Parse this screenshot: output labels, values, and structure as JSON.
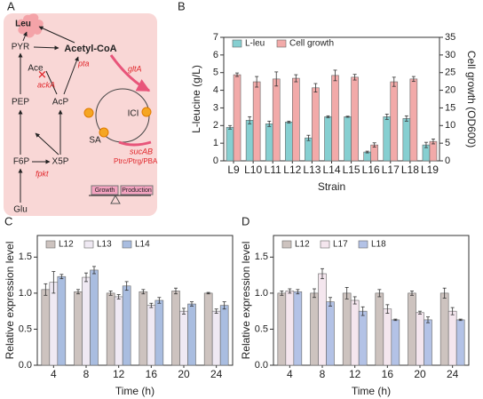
{
  "panels": [
    "A",
    "B",
    "C",
    "D"
  ],
  "diagram": {
    "nodes": [
      "Leu",
      "PYR",
      "Acetyl-CoA",
      "Ace",
      "PEP",
      "AcP",
      "F6P",
      "X5P",
      "Glu",
      "ICI",
      "SA",
      "Growth",
      "Production"
    ],
    "genes": [
      "pta",
      "ackA",
      "gltA",
      "fpkt",
      "sucAB",
      "Ptrc/Ptrg/PBA"
    ]
  },
  "chart_data": [
    {
      "type": "bar",
      "xlabel": "Strain",
      "ylabel": "L-leucine (g/L)",
      "y2label": "Cell growth (OD600)",
      "categories": [
        "L9",
        "L10",
        "L11",
        "L12",
        "L13",
        "L14",
        "L15",
        "L16",
        "L17",
        "L18",
        "L19"
      ],
      "series": [
        {
          "name": "L-leu",
          "color": "#86cfd1",
          "values": [
            1.9,
            2.3,
            2.1,
            2.2,
            1.3,
            2.5,
            2.5,
            0.5,
            2.5,
            2.4,
            0.9
          ],
          "errors": [
            0.1,
            0.2,
            0.15,
            0.05,
            0.15,
            0.05,
            0.03,
            0.05,
            0.15,
            0.15,
            0.15
          ]
        },
        {
          "name": "Cell growth",
          "color": "#f2aaa9",
          "axis": "y2",
          "values": [
            24.4,
            22.4,
            23.2,
            23.4,
            20.7,
            24.2,
            23.7,
            4.5,
            22.4,
            23.2,
            5.5
          ],
          "errors": [
            0.5,
            1.5,
            2.0,
            1.0,
            1.2,
            1.5,
            0.8,
            0.6,
            1.3,
            0.7,
            0.7
          ]
        }
      ],
      "ylim": [
        0,
        7
      ],
      "yticks": [
        0,
        1,
        2,
        3,
        4,
        5,
        6,
        7
      ],
      "y2lim": [
        0,
        35
      ],
      "y2ticks": [
        0,
        5,
        10,
        15,
        20,
        25,
        30,
        35
      ],
      "legend": "upper left"
    },
    {
      "type": "bar",
      "xlabel": "Time (h)",
      "ylabel": "Relative expression level",
      "categories": [
        "4",
        "8",
        "12",
        "16",
        "20",
        "24"
      ],
      "series": [
        {
          "name": "L12",
          "color": "#cdc3bf",
          "values": [
            1.05,
            1.02,
            1.0,
            1.02,
            1.03,
            1.0
          ],
          "errors": [
            0.08,
            0.03,
            0.03,
            0.03,
            0.04,
            0.01
          ]
        },
        {
          "name": "L13",
          "color": "#efe9f3",
          "values": [
            1.15,
            1.22,
            0.95,
            0.83,
            0.75,
            0.75
          ],
          "errors": [
            0.15,
            0.06,
            0.03,
            0.03,
            0.04,
            0.03
          ]
        },
        {
          "name": "L14",
          "color": "#a9bde0",
          "values": [
            1.23,
            1.32,
            1.1,
            0.9,
            0.85,
            0.83
          ],
          "errors": [
            0.03,
            0.05,
            0.06,
            0.04,
            0.03,
            0.05
          ]
        }
      ],
      "ylim": [
        0,
        1.8
      ],
      "yticks": [
        {
          "value": 0,
          "label": "0.0"
        },
        0.5,
        {
          "value": 1,
          "label": "1.0"
        },
        1.5
      ],
      "legend": "upper left"
    },
    {
      "type": "bar",
      "xlabel": "Time (h)",
      "ylabel": "Relative expression level",
      "categories": [
        "4",
        "8",
        "12",
        "16",
        "20",
        "24"
      ],
      "series": [
        {
          "name": "L12",
          "color": "#cdc3bf",
          "values": [
            1.0,
            1.0,
            1.0,
            1.0,
            1.0,
            1.0
          ],
          "errors": [
            0.03,
            0.06,
            0.08,
            0.05,
            0.03,
            0.07
          ]
        },
        {
          "name": "L17",
          "color": "#f4e6ee",
          "values": [
            1.03,
            1.27,
            0.9,
            0.78,
            0.73,
            0.75
          ],
          "errors": [
            0.03,
            0.07,
            0.05,
            0.06,
            0.02,
            0.05
          ]
        },
        {
          "name": "L18",
          "color": "#b3c2e6",
          "values": [
            1.02,
            0.88,
            0.75,
            0.63,
            0.63,
            0.63
          ],
          "errors": [
            0.03,
            0.06,
            0.06,
            0.01,
            0.04,
            0.01
          ]
        }
      ],
      "ylim": [
        0,
        1.8
      ],
      "yticks": [
        {
          "value": 0,
          "label": "0.0"
        },
        0.5,
        {
          "value": 1,
          "label": "1.0"
        },
        1.5
      ],
      "legend": "upper left"
    }
  ]
}
